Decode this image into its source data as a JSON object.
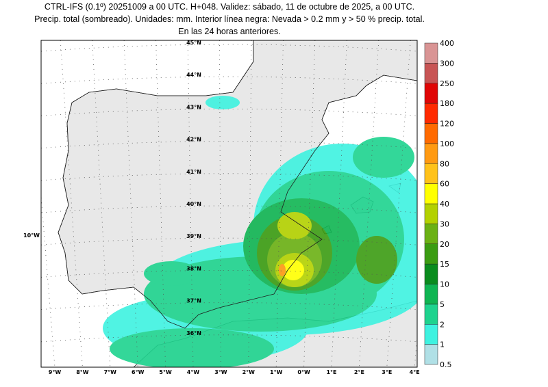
{
  "header": {
    "lines": [
      "CTRL-IFS (0.1º) 20251009 a 00 UTC. H+048. Validez: sábado, 11 de octubre de 2025, a 00 UTC.",
      "Precip. total (sombreado). Unidades: mm. Interior línea negra: Nevada > 0.2 mm y > 50 % precip. total.",
      "En las 24 horas anteriores."
    ]
  },
  "map": {
    "lat_labels": [
      "45°N",
      "44°N",
      "43°N",
      "42°N",
      "41°N",
      "40°N",
      "39°N",
      "38°N",
      "37°N",
      "36°N"
    ],
    "lon_labels": [
      "9°W",
      "8°W",
      "7°W",
      "6°W",
      "5°W",
      "4°W",
      "3°W",
      "2°W",
      "1°W",
      "0°W",
      "1°E",
      "2°E",
      "3°E",
      "4°E"
    ],
    "west_label": "10°W"
  },
  "colorbar": {
    "labels": [
      0.5,
      1,
      2,
      5,
      10,
      15,
      20,
      30,
      40,
      60,
      80,
      100,
      120,
      180,
      250,
      300,
      400
    ],
    "colors": [
      "#b0e0e6",
      "#3ef2e0",
      "#1ed38e",
      "#0fb552",
      "#0a8c1e",
      "#3b9c12",
      "#6bb114",
      "#b3d100",
      "#ffff00",
      "#ffc21a",
      "#ff9a12",
      "#ff6a00",
      "#ff2a00",
      "#e00606",
      "#c85454",
      "#d99494",
      "#f0c6c6"
    ]
  }
}
